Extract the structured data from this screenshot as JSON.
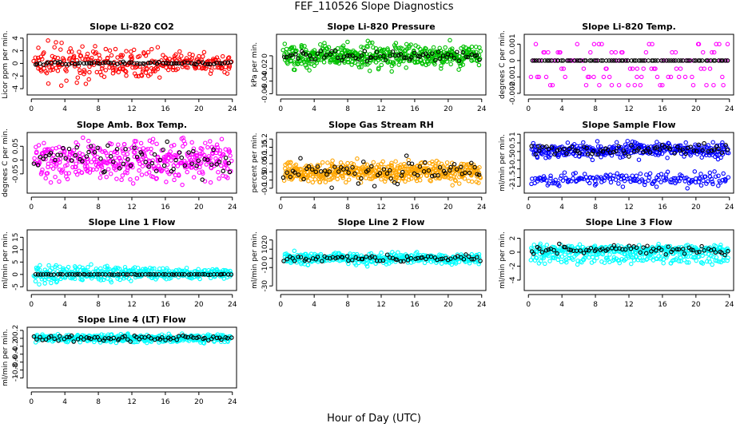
{
  "figure": {
    "title": "FEF_110526  Slope Diagnostics",
    "xlabel": "Hour of Day (UTC)"
  },
  "chart_data": [
    {
      "type": "scatter",
      "title": "Slope Li-820 CO2",
      "ylabel": "Licor ppm per min.",
      "xlim": [
        -0.5,
        24.5
      ],
      "ylim": [
        -5,
        4.6
      ],
      "xticks": [
        0,
        4,
        8,
        12,
        16,
        20,
        24
      ],
      "yticks": [
        -4,
        -2,
        0,
        2,
        4
      ],
      "series": [
        {
          "color": "#ff0000",
          "center": 0,
          "spread": 1.4,
          "taper": 0.55,
          "count": 300,
          "lo": -4.6,
          "hi": 4.4
        },
        {
          "color": "#000000",
          "center": 0,
          "spread": 0.12,
          "taper": 0,
          "count": 70,
          "lo": -0.5,
          "hi": 0.5
        }
      ]
    },
    {
      "type": "scatter",
      "title": "Slope Li-820 Pressure",
      "ylabel": "kPa per min.",
      "xlim": [
        -0.5,
        24.5
      ],
      "ylim": [
        -0.062,
        0.034
      ],
      "xticks": [
        0,
        4,
        8,
        12,
        16,
        20,
        24
      ],
      "yticks": [
        -0.06,
        -0.04,
        -0.02,
        0.0
      ],
      "series": [
        {
          "color": "#00c000",
          "center": 0,
          "spread": 0.009,
          "taper": 0,
          "count": 500,
          "lo": -0.025,
          "hi": 0.025
        },
        {
          "color": "#000000",
          "center": 0,
          "spread": 0.004,
          "taper": 0,
          "count": 70,
          "lo": -0.015,
          "hi": 0.015
        }
      ]
    },
    {
      "type": "scatter",
      "title": "Slope Li-820 Temp.",
      "ylabel": "degrees C per min.",
      "xlim": [
        -0.5,
        24.5
      ],
      "ylim": [
        -0.0021,
        0.0016
      ],
      "xticks": [
        0,
        4,
        8,
        12,
        16,
        20,
        24
      ],
      "yticks": [
        -0.002,
        -0.001,
        0.0,
        0.001
      ],
      "series": [
        {
          "color": "#ff00ff",
          "center": 0,
          "spread": 0.0007,
          "taper": 0,
          "count": 110,
          "lo": -0.002,
          "hi": 0.0014,
          "levels": [
            -0.0015,
            -0.001,
            -0.0005,
            0,
            0.0005,
            0.001
          ]
        },
        {
          "color": "#000000",
          "center": 0,
          "spread": 0,
          "taper": 0,
          "count": 80,
          "lo": -0.001,
          "hi": 0.001
        }
      ]
    },
    {
      "type": "scatter",
      "title": "Slope Amb. Box Temp.",
      "ylabel": "degrees C per min.",
      "xlim": [
        -0.5,
        24.5
      ],
      "ylim": [
        -0.12,
        0.1
      ],
      "xticks": [
        0,
        4,
        8,
        12,
        16,
        20,
        24
      ],
      "yticks": [
        -0.05,
        0.0,
        0.05
      ],
      "series": [
        {
          "color": "#ff00ff",
          "center": 0,
          "spread": 0.035,
          "taper": 0,
          "count": 420,
          "lo": -0.09,
          "hi": 0.09
        },
        {
          "color": "#000000",
          "center": 0,
          "spread": 0.03,
          "taper": 0,
          "count": 70,
          "lo": -0.11,
          "hi": 0.07
        }
      ]
    },
    {
      "type": "scatter",
      "title": "Slope Gas Stream RH",
      "ylabel": "percent per min.",
      "xlim": [
        -0.5,
        24.5
      ],
      "ylim": [
        -0.13,
        0.24
      ],
      "xticks": [
        0,
        4,
        8,
        12,
        16,
        20,
        24
      ],
      "yticks": [
        -0.1,
        -0.05,
        0.0,
        0.05,
        0.1,
        0.15,
        0.2
      ],
      "series": [
        {
          "color": "#ffa500",
          "center": 0,
          "spread": 0.03,
          "taper": 0,
          "count": 520,
          "lo": -0.11,
          "hi": 0.12
        },
        {
          "color": "#000000",
          "center": 0,
          "spread": 0.035,
          "taper": 0,
          "count": 70,
          "lo": -0.1,
          "hi": 0.22
        }
      ]
    },
    {
      "type": "scatter",
      "title": "Slope Sample Flow",
      "ylabel": "ml/min per min.",
      "xlim": [
        -0.5,
        24.5
      ],
      "ylim": [
        -2.4,
        1.1
      ],
      "xticks": [
        0,
        4,
        8,
        12,
        16,
        20,
        24
      ],
      "yticks": [
        -2.0,
        -1.5,
        -1.0,
        -0.5,
        0.0,
        0.5,
        1.0
      ],
      "series": [
        {
          "color": "#0000ff",
          "center": 0.1,
          "spread": 0.22,
          "taper": 0,
          "count": 330,
          "lo": -0.6,
          "hi": 1.0
        },
        {
          "color": "#0000ff",
          "center": -1.6,
          "spread": 0.2,
          "taper": 0,
          "count": 170,
          "lo": -2.3,
          "hi": -0.7
        },
        {
          "color": "#000000",
          "center": 0.1,
          "spread": 0.18,
          "taper": 0,
          "count": 70,
          "lo": -0.5,
          "hi": 0.9
        }
      ]
    },
    {
      "type": "scatter",
      "title": "Slope Line 1 Flow",
      "ylabel": "ml/min per min.",
      "xlim": [
        -0.5,
        24.5
      ],
      "ylim": [
        -6.5,
        18
      ],
      "xticks": [
        0,
        4,
        8,
        12,
        16,
        20,
        24
      ],
      "yticks": [
        -5,
        0,
        5,
        10,
        15
      ],
      "series": [
        {
          "color": "#00ffff",
          "center": 0.3,
          "spread": 1.8,
          "taper": 0.6,
          "count": 380,
          "lo": -6,
          "hi": 17
        },
        {
          "color": "#000000",
          "center": 0,
          "spread": 0.05,
          "taper": 0,
          "count": 70,
          "lo": -0.3,
          "hi": 0.3
        }
      ]
    },
    {
      "type": "scatter",
      "title": "Slope Line 2 Flow",
      "ylabel": "ml/min per min.",
      "xlim": [
        -0.5,
        24.5
      ],
      "ylim": [
        -35,
        31
      ],
      "xticks": [
        0,
        4,
        8,
        12,
        16,
        20,
        24
      ],
      "yticks": [
        -30,
        -10,
        0,
        10,
        20
      ],
      "series": [
        {
          "color": "#00ffff",
          "center": 0,
          "spread": 3,
          "taper": 0,
          "count": 380,
          "lo": -12,
          "hi": 12
        },
        {
          "color": "#000000",
          "center": 0,
          "spread": 2,
          "taper": 0,
          "count": 70,
          "lo": -8,
          "hi": 8
        }
      ]
    },
    {
      "type": "scatter",
      "title": "Slope Line 3 Flow",
      "ylabel": "ml/min per min.",
      "xlim": [
        -0.5,
        24.5
      ],
      "ylim": [
        -5.5,
        3.2
      ],
      "xticks": [
        0,
        4,
        8,
        12,
        16,
        20,
        24
      ],
      "yticks": [
        -4,
        -2,
        0,
        2
      ],
      "series": [
        {
          "color": "#00ffff",
          "center": 0.3,
          "spread": 0.35,
          "taper": 0,
          "count": 300,
          "lo": -1.5,
          "hi": 1.5
        },
        {
          "color": "#00ffff",
          "center": -0.9,
          "spread": 0.4,
          "taper": 0,
          "count": 140,
          "lo": -3,
          "hi": 0.5
        },
        {
          "color": "#000000",
          "center": 0.4,
          "spread": 0.3,
          "taper": 0,
          "count": 70,
          "lo": -1,
          "hi": 1.5
        }
      ]
    },
    {
      "type": "scatter",
      "title": "Slope Line 4 (LT) Flow",
      "ylabel": "ml/min per min.",
      "xlim": [
        -0.5,
        24.5
      ],
      "ylim": [
        -1.25,
        0.28
      ],
      "xticks": [
        0,
        4,
        8,
        12,
        16,
        20,
        24
      ],
      "yticks": [
        -1.0,
        -0.8,
        -0.6,
        -0.4,
        -0.2,
        0.0,
        0.2
      ],
      "series": [
        {
          "color": "#00ffff",
          "center": 0,
          "spread": 0.05,
          "taper": 0,
          "count": 400,
          "lo": -0.25,
          "hi": 0.2
        },
        {
          "color": "#000000",
          "center": 0,
          "spread": 0.04,
          "taper": 0,
          "count": 70,
          "lo": -0.2,
          "hi": 0.15
        }
      ]
    }
  ]
}
